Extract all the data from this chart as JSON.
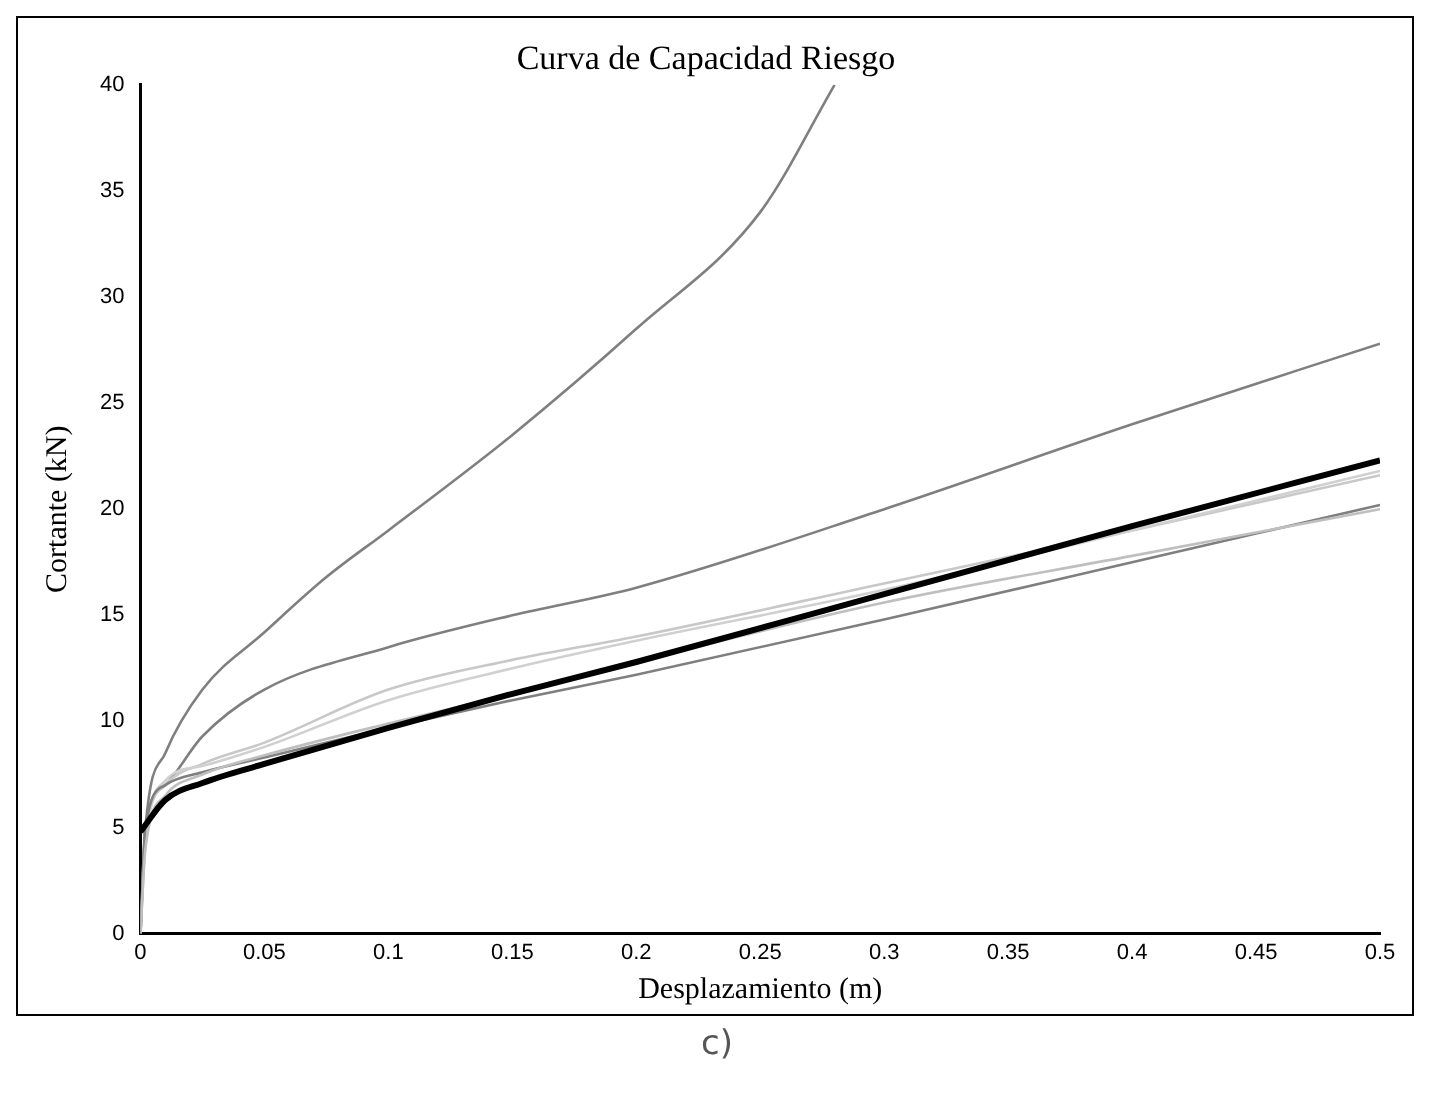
{
  "chart_data": {
    "type": "line",
    "title": "Curva de Capacidad Riesgo",
    "xlabel": "Desplazamiento (m)",
    "ylabel": "Cortante (kN)",
    "annotations": [
      "c)"
    ],
    "xlim": [
      0,
      0.5
    ],
    "xticks": [
      0,
      0.05,
      0.1,
      0.15,
      0.2,
      0.25,
      0.3,
      0.35,
      0.4,
      0.45,
      0.5
    ],
    "ylim": [
      0,
      40
    ],
    "yticks": [
      0,
      5,
      10,
      15,
      20,
      25,
      30,
      35,
      40
    ],
    "grid": false,
    "legend": false,
    "marker": "none",
    "line_style": "solid",
    "series": [
      {
        "color": "#7f7f7f",
        "x": [
          0,
          0.002,
          0.01,
          0.025,
          0.05,
          0.075,
          0.1,
          0.15,
          0.2,
          0.25,
          0.28
        ],
        "values": [
          0,
          5,
          8.5,
          11.5,
          14.2,
          16.8,
          19,
          23.5,
          28.5,
          34,
          40
        ]
      },
      {
        "color": "#7f7f7f",
        "x": [
          0,
          0.002,
          0.01,
          0.025,
          0.05,
          0.1,
          0.15,
          0.2,
          0.3,
          0.4,
          0.5
        ],
        "values": [
          0,
          5,
          7,
          9.3,
          11.5,
          13.5,
          15,
          16.3,
          20,
          24,
          27.8
        ]
      },
      {
        "color": "#c8c8c8",
        "x": [
          0,
          0.002,
          0.01,
          0.025,
          0.05,
          0.1,
          0.15,
          0.2,
          0.3,
          0.4,
          0.5
        ],
        "values": [
          0,
          4.5,
          7,
          8,
          9,
          11.5,
          12.9,
          14,
          16.5,
          19,
          21.6
        ]
      },
      {
        "color": "#d0d0d0",
        "x": [
          0,
          0.002,
          0.01,
          0.025,
          0.05,
          0.1,
          0.15,
          0.2,
          0.3,
          0.4,
          0.5
        ],
        "values": [
          0,
          4.2,
          7.2,
          7.9,
          8.8,
          11,
          12.5,
          13.8,
          16.2,
          19,
          21.8
        ]
      },
      {
        "color": "#7f7f7f",
        "x": [
          0,
          0.002,
          0.01,
          0.025,
          0.05,
          0.1,
          0.15,
          0.2,
          0.3,
          0.4,
          0.5
        ],
        "values": [
          0,
          5,
          7,
          7.6,
          8.3,
          9.7,
          11,
          12.2,
          14.8,
          17.5,
          20.2
        ]
      },
      {
        "color": "#bfbfbf",
        "x": [
          0,
          0.002,
          0.01,
          0.025,
          0.05,
          0.1,
          0.15,
          0.2,
          0.3,
          0.4,
          0.5
        ],
        "values": [
          0,
          4,
          6.5,
          7.5,
          8.4,
          9.9,
          11.3,
          12.8,
          15.6,
          17.8,
          20
        ]
      },
      {
        "color": "#000000",
        "x": [
          0,
          0.01,
          0.025,
          0.05,
          0.1,
          0.15,
          0.2,
          0.3,
          0.4,
          0.5
        ],
        "values": [
          4.8,
          6.3,
          7.1,
          8,
          9.7,
          11.3,
          12.8,
          16,
          19.2,
          22.3
        ]
      }
    ]
  }
}
